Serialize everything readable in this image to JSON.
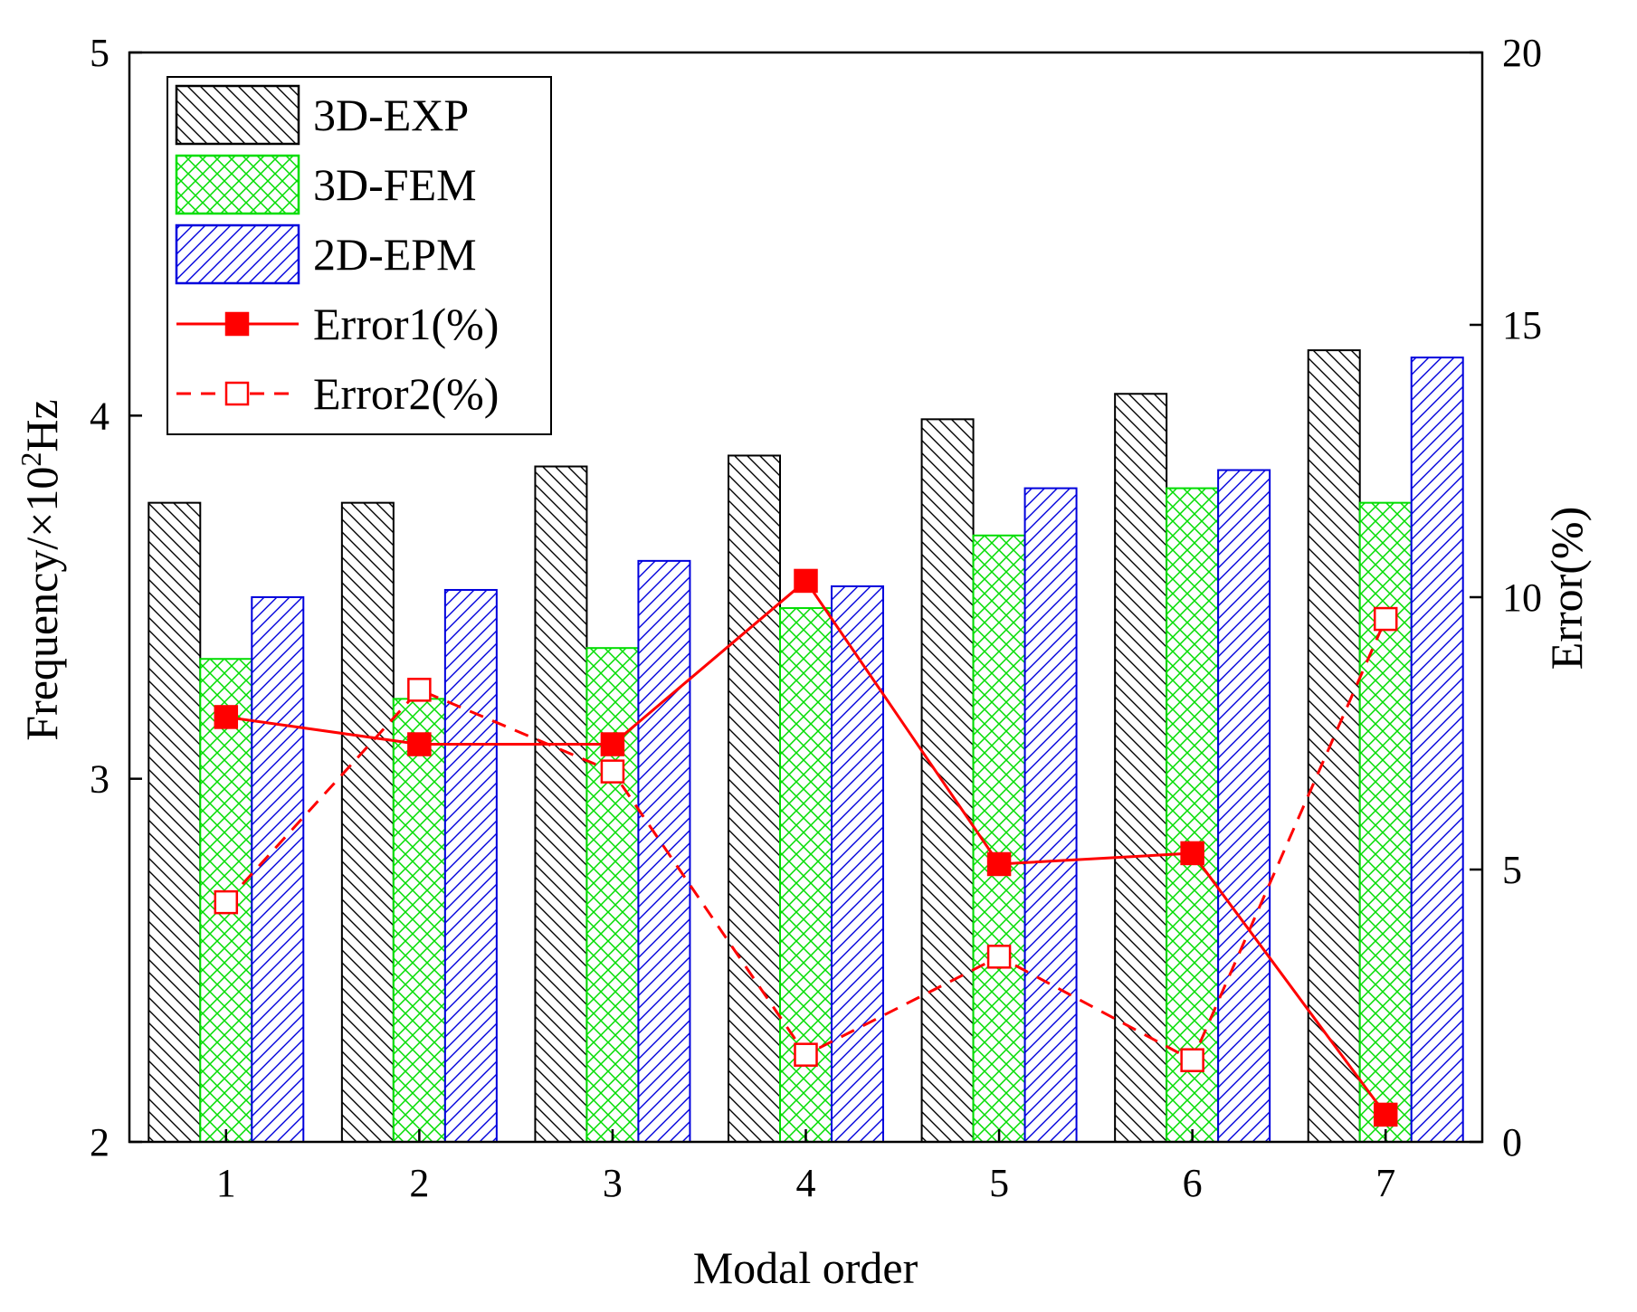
{
  "chart_data": {
    "type": "bar",
    "categories": [
      "1",
      "2",
      "3",
      "4",
      "5",
      "6",
      "7"
    ],
    "xlabel": "Modal order",
    "ylabel": "Frequency/×10",
    "ylabel_sup": "2",
    "ylabel_unit": "Hz",
    "y2label": "Error(%)",
    "ylim": [
      2,
      5
    ],
    "y2lim": [
      0,
      20
    ],
    "yticks": [
      "2",
      "3",
      "4",
      "5"
    ],
    "y2ticks": [
      "0",
      "5",
      "10",
      "15",
      "20"
    ],
    "grid": false,
    "legend_position": "top-left",
    "series": [
      {
        "name": "3D-EXP",
        "kind": "bar",
        "axis": "left",
        "color": "#000000",
        "pattern": "backslash",
        "values": [
          3.76,
          3.76,
          3.86,
          3.89,
          3.99,
          4.06,
          4.18
        ]
      },
      {
        "name": "3D-FEM",
        "kind": "bar",
        "axis": "left",
        "color": "#00dd00",
        "pattern": "crosshatch",
        "values": [
          3.33,
          3.22,
          3.36,
          3.47,
          3.67,
          3.8,
          3.76
        ]
      },
      {
        "name": "2D-EPM",
        "kind": "bar",
        "axis": "left",
        "color": "#0000dd",
        "pattern": "slash",
        "values": [
          3.5,
          3.52,
          3.6,
          3.53,
          3.8,
          3.85,
          4.16
        ]
      },
      {
        "name": "Error1(%)",
        "kind": "line",
        "axis": "right",
        "color": "#ff0000",
        "style": "solid",
        "marker": "filled-square",
        "values": [
          7.8,
          7.3,
          7.3,
          10.3,
          5.1,
          5.3,
          0.5
        ]
      },
      {
        "name": "Error2(%)",
        "kind": "line",
        "axis": "right",
        "color": "#ff0000",
        "style": "dashed",
        "marker": "open-square",
        "values": [
          4.4,
          8.3,
          6.8,
          1.6,
          3.4,
          1.5,
          9.6
        ]
      }
    ]
  }
}
